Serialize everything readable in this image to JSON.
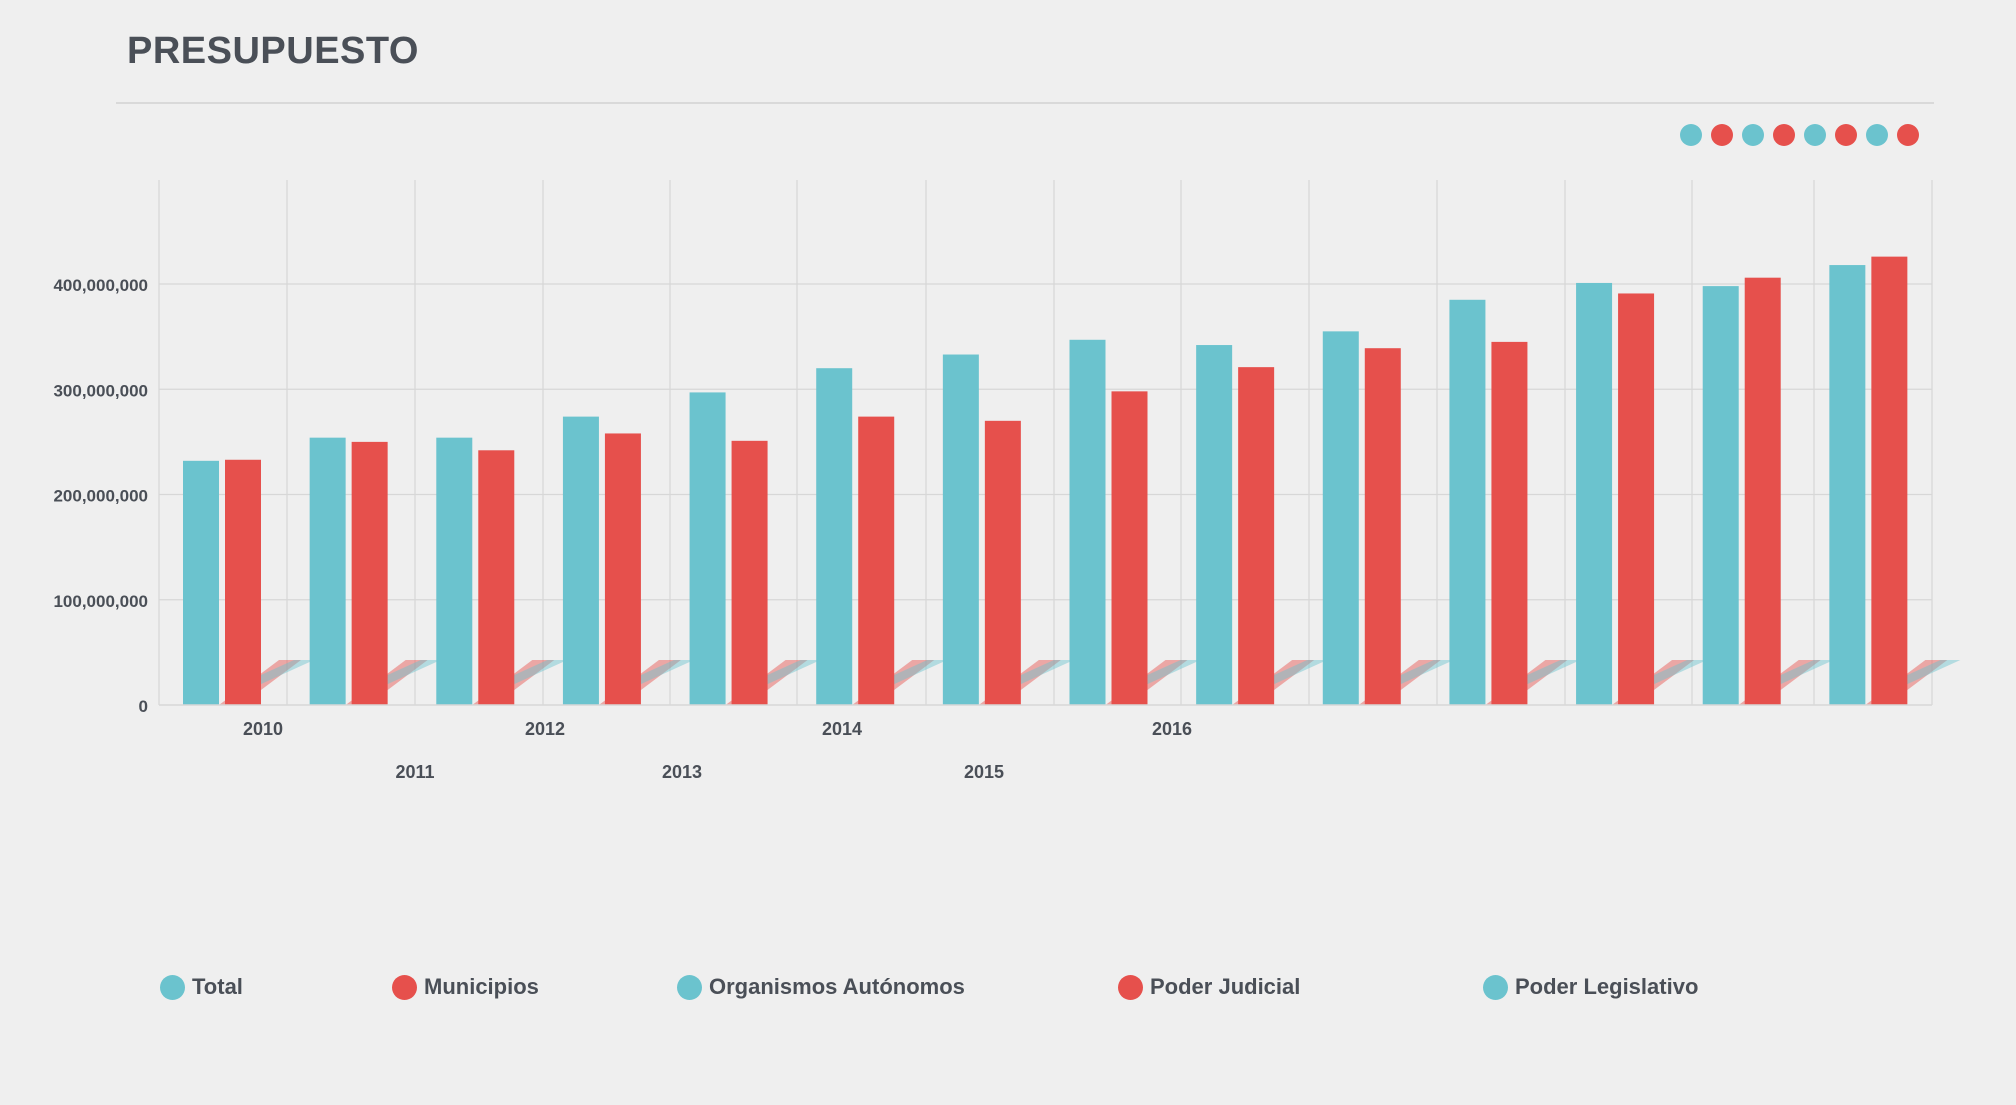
{
  "header": {
    "title": "PRESUPUESTO"
  },
  "colors": {
    "teal": "#6bc3ce",
    "red": "#e6504c",
    "text": "#4a4f57",
    "grid": "#d7d7d7"
  },
  "pager": {
    "dots": [
      {
        "color": "teal"
      },
      {
        "color": "red"
      },
      {
        "color": "teal"
      },
      {
        "color": "red"
      },
      {
        "color": "teal"
      },
      {
        "color": "red"
      },
      {
        "color": "teal"
      },
      {
        "color": "red"
      }
    ]
  },
  "legend": {
    "items": [
      {
        "label": "Total",
        "color": "teal"
      },
      {
        "label": "Municipios",
        "color": "red"
      },
      {
        "label": "Organismos Autónomos",
        "color": "teal"
      },
      {
        "label": "Poder Judicial",
        "color": "red"
      },
      {
        "label": "Poder Legislativo",
        "color": "teal"
      }
    ]
  },
  "chart_data": {
    "type": "bar",
    "title": "PRESUPUESTO",
    "xlabel": "",
    "ylabel": "",
    "ylim": [
      0,
      500000000
    ],
    "yticks": [
      0,
      100000000,
      200000000,
      300000000,
      400000000
    ],
    "ytick_labels": [
      "0",
      "100,000,000",
      "200,000,000",
      "300,000,000",
      "400,000,000"
    ],
    "x_tick_labels": [
      "2010",
      "2011",
      "2012",
      "2013",
      "2014",
      "2015",
      "2016"
    ],
    "grid": true,
    "legend_position": "bottom",
    "group_count": 14,
    "series": [
      {
        "color": "teal",
        "values": [
          232000000,
          254000000,
          254000000,
          274000000,
          297000000,
          320000000,
          333000000,
          347000000,
          342000000,
          355000000,
          385000000,
          401000000,
          398000000,
          418000000
        ]
      },
      {
        "color": "red",
        "values": [
          233000000,
          250000000,
          242000000,
          258000000,
          251000000,
          274000000,
          270000000,
          298000000,
          321000000,
          339000000,
          345000000,
          391000000,
          406000000,
          426000000
        ]
      }
    ]
  }
}
